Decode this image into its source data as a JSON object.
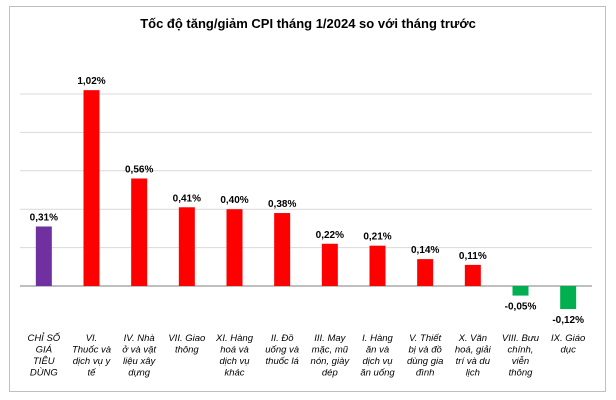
{
  "chart_data": {
    "type": "bar",
    "title": "Tốc độ tăng/giảm CPI tháng 1/2024 so với tháng trước",
    "xlabel": "",
    "ylabel": "",
    "ylim": [
      -0.2,
      1.1
    ],
    "grid": true,
    "legend": "none",
    "categories": [
      [
        "CHỈ SỐ",
        "GIÁ",
        "TIÊU",
        "DÙNG"
      ],
      [
        "VI.",
        "Thuốc và",
        "dịch vụ y",
        "tế"
      ],
      [
        "IV. Nhà",
        "ở và vật",
        "liệu xây",
        "dựng"
      ],
      [
        "VII. Giao",
        "thông"
      ],
      [
        "XI. Hàng",
        "hoá và",
        "dịch vụ",
        "khác"
      ],
      [
        "II. Đồ",
        "uống và",
        "thuốc lá"
      ],
      [
        "III. May",
        "mặc, mũ",
        "nón, giày",
        "dép"
      ],
      [
        "I. Hàng",
        "ăn và",
        "dịch vụ",
        "ăn uống"
      ],
      [
        "V. Thiết",
        "bị và đồ",
        "dùng gia",
        "đình"
      ],
      [
        "X. Văn",
        "hoá, giải",
        "trí và du",
        "lịch"
      ],
      [
        "VIII. Bưu",
        "chính,",
        "viễn",
        "thông"
      ],
      [
        "IX. Giáo",
        "dục"
      ]
    ],
    "values": [
      0.31,
      1.02,
      0.56,
      0.41,
      0.4,
      0.38,
      0.22,
      0.21,
      0.14,
      0.11,
      -0.05,
      -0.12
    ],
    "value_labels": [
      "0,31%",
      "1,02%",
      "0,56%",
      "0,41%",
      "0,40%",
      "0,38%",
      "0,22%",
      "0,21%",
      "0,14%",
      "0,11%",
      "-0,05%",
      "-0,12%"
    ],
    "colors": {
      "total": "#7030a0",
      "positive": "#ff0000",
      "negative": "#00b050",
      "grid": "#d9d9d9",
      "axis": "#7f7f7f"
    }
  }
}
